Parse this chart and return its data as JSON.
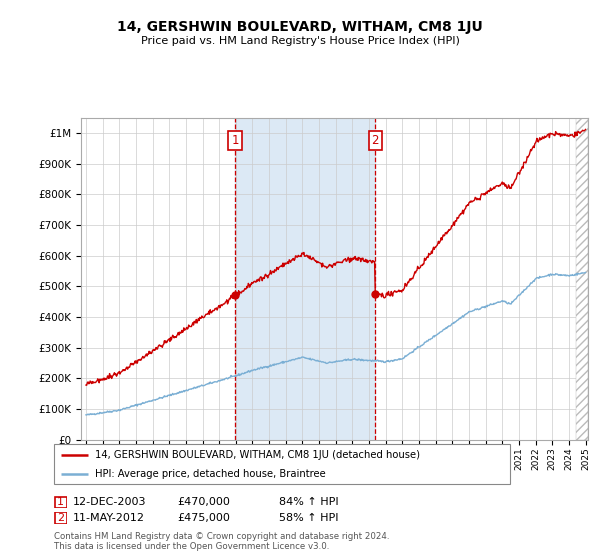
{
  "title": "14, GERSHWIN BOULEVARD, WITHAM, CM8 1JU",
  "subtitle": "Price paid vs. HM Land Registry's House Price Index (HPI)",
  "legend_line1": "14, GERSHWIN BOULEVARD, WITHAM, CM8 1JU (detached house)",
  "legend_line2": "HPI: Average price, detached house, Braintree",
  "annotation1_date": "12-DEC-2003",
  "annotation1_price": 470000,
  "annotation1_hpi": "84% ↑ HPI",
  "annotation2_date": "11-MAY-2012",
  "annotation2_price": 475000,
  "annotation2_hpi": "58% ↑ HPI",
  "footer": "Contains HM Land Registry data © Crown copyright and database right 2024.\nThis data is licensed under the Open Government Licence v3.0.",
  "hpi_color": "#7bafd4",
  "price_color": "#cc0000",
  "shaded_color": "#dce9f5",
  "ylim": [
    0,
    1050000
  ],
  "yticks": [
    0,
    100000,
    200000,
    300000,
    400000,
    500000,
    600000,
    700000,
    800000,
    900000,
    1000000
  ],
  "sale1_year": 2003.958,
  "sale2_year": 2012.37
}
